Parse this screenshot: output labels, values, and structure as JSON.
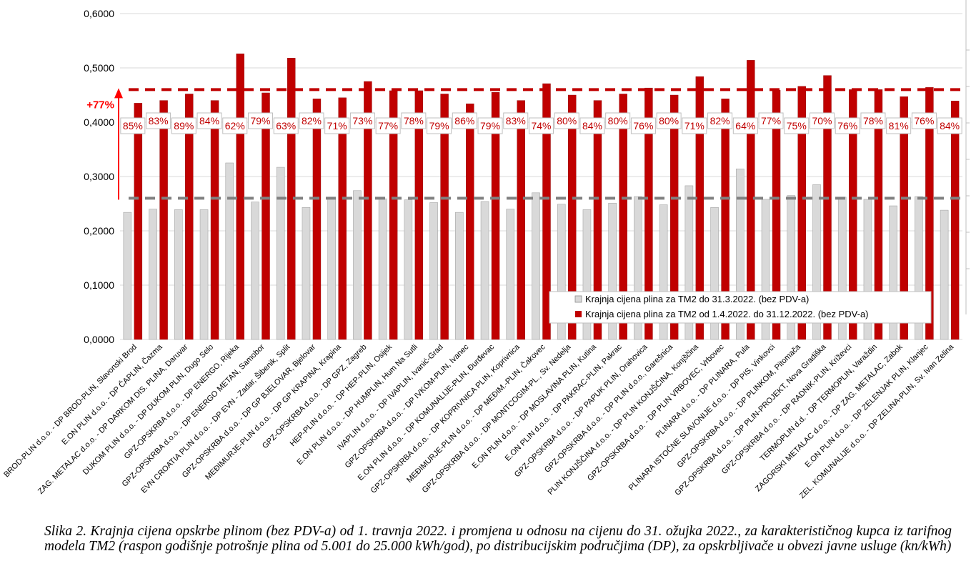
{
  "chart_data": {
    "type": "bar",
    "ylim": [
      0,
      0.6
    ],
    "ytick_values": [
      0,
      0.1,
      0.2,
      0.3,
      0.4,
      0.5,
      0.6
    ],
    "ytick_labels": [
      "0,0000",
      "0,1000",
      "0,2000",
      "0,3000",
      "0,4000",
      "0,5000",
      "0,6000"
    ],
    "categories": [
      "BROD-PLIN d.o.o. - DP BROD-PLIN, Slavonski Brod",
      "E.ON PLIN d.o.o. - DP ČAPLIN, Čazma",
      "ZAG. METALAC d.o.o. - DP DARKOM DIS. PLINA, Daruvar",
      "DUKOM PLIN d.o.o. - DP DUKOM PLIN, Dugo Selo",
      "GPZ-OPSKRBA d.o.o. - DP ENERGO, Rijeka",
      "GPZ-OPSKRBA d.o.o. - DP ENERGO METAN, Samobor",
      "EVN CROATIA PLIN d.o.o. - DP EVN - Zadar, Šibenik, Split",
      "GPZ-OPSKRBA d.o.o. - DP GP BJELOVAR, Bjelovar",
      "MEĐIMURJE-PLIN d.o.o. - DP GP KRAPINA, Krapina",
      "GPZ-OPSKRBA d.o.o. - DP GPZ, Zagreb",
      "HEP-PLIN d.o.o. - DP HEP-PLIN, Osijek",
      "E.ON PLIN d.o.o. - DP HUMPLIN, Hum Na Sutli",
      "IVAPLIN d.o.o. - DP IVAPLIN, Ivanić-Grad",
      "GPZ-OPSKRBA d.o.o. - DP IVKOM-PLIN, Ivanec",
      "E.ON PLIN d.o.o. - DP KOMUNALIJE-PLIN, Đurđevac",
      "GPZ-OPSKRBA d.o.o. - DP KOPRIVNICA PLIN, Koprivnica",
      "MEĐIMURJE-PLIN d.o.o. - DP MEĐIM.-PLIN, Čakovec",
      "GPZ-OPSKRBA d.o.o. - DP MONTCOGIM-PL., Sv. Nedelja",
      "E.ON PLIN d.o.o. - DP MOSLAVINA PLIN, Kutina",
      "E.ON PLIN d.o.o. - DP PAKRAC-PLIN, Pakrac",
      "GPZ-OPSKRBA d.o.o. - DP PAPUK PLIN, Orahovica",
      "GPZ-OPSKRBA d.o.o. - DP PLIN d.o.o., Garešnica",
      "PLIN KONJŠČINA d.o.o. - DP PLIN KONJŠČINA, Konjščina",
      "GPZ-OPSKRBA d.o.o. - DP PLIN VRBOVEC, Vrbovec",
      "PLINARA d.o.o. - DP PLINARA, Pula",
      "PLINARA ISTOČNE SLAVONIJE d.o.o. - DP PIS, Vinkovci",
      "GPZ-OPSKRBA d.o.o. - DP PLINKOM, Pitomača",
      "GPZ-OPSKRBA d.o.o. - DP PLIN-PROJEKT, Nova Gradiška",
      "GPZ-OPSKRBA d.o.o. - DP RADNIK-PLIN, Križevci",
      "TERMOPLIN d.d. - DP TERMOPLIN, Varaždin",
      "ZAGORSKI METALAC d.o.o. - DP ZAG. METALAC, Zabok",
      "E.ON PLIN d.o.o. - DP ZELENJAK PLIN, Klanjec",
      "ZEL. KOMUNALIJE d.o.o. - DP ZELINA-PLIN, Sv. Ivan Zelina"
    ],
    "series": [
      {
        "name": "Krajnja cijena plina za TM2 do 31.3.2022. (bez PDV-a)",
        "color": "#d9d9d9",
        "values": [
          0.234,
          0.24,
          0.239,
          0.239,
          0.325,
          0.253,
          0.317,
          0.243,
          0.261,
          0.274,
          0.259,
          0.257,
          0.252,
          0.234,
          0.254,
          0.24,
          0.27,
          0.249,
          0.239,
          0.251,
          0.263,
          0.248,
          0.283,
          0.243,
          0.314,
          0.258,
          0.265,
          0.285,
          0.262,
          0.258,
          0.246,
          0.263,
          0.238
        ]
      },
      {
        "name": "Krajnja cijena plina za TM2 od 1.4.2022. do 31.12.2022. (bez PDV-a)",
        "color": "#c00000",
        "values": [
          0.435,
          0.44,
          0.452,
          0.44,
          0.526,
          0.454,
          0.518,
          0.443,
          0.445,
          0.475,
          0.458,
          0.458,
          0.452,
          0.434,
          0.455,
          0.44,
          0.471,
          0.45,
          0.44,
          0.452,
          0.463,
          0.45,
          0.484,
          0.443,
          0.514,
          0.459,
          0.466,
          0.486,
          0.46,
          0.46,
          0.447,
          0.464,
          0.439
        ]
      }
    ],
    "data_labels": [
      "85%",
      "83%",
      "89%",
      "84%",
      "62%",
      "79%",
      "63%",
      "82%",
      "71%",
      "73%",
      "77%",
      "78%",
      "79%",
      "86%",
      "79%",
      "83%",
      "74%",
      "80%",
      "84%",
      "80%",
      "76%",
      "80%",
      "71%",
      "82%",
      "64%",
      "77%",
      "75%",
      "70%",
      "76%",
      "78%",
      "81%",
      "76%",
      "84%"
    ],
    "reference_lines": [
      {
        "value": 0.46,
        "color": "#c00000",
        "style": "dashed"
      },
      {
        "value": 0.26,
        "color": "#808080",
        "style": "dashed"
      }
    ],
    "increase_annotation": {
      "label": "+77%",
      "from": 0.26,
      "to": 0.46,
      "color": "#ff0000"
    },
    "legend_position": "bottom-right",
    "grid": true
  },
  "caption": "Slika 2. Krajnja cijena opskrbe plinom (bez PDV-a) od 1. travnja 2022. i promjena u odnosu na cijenu do 31. ožujka 2022., za karakterističnog kupca iz tarifnog modela TM2 (raspon godišnje potrošnje plina od 5.001 do 25.000 kWh/god), po distribucijskim područjima (DP), za opskrbljivače u obvezi javne usluge (kn/kWh)"
}
